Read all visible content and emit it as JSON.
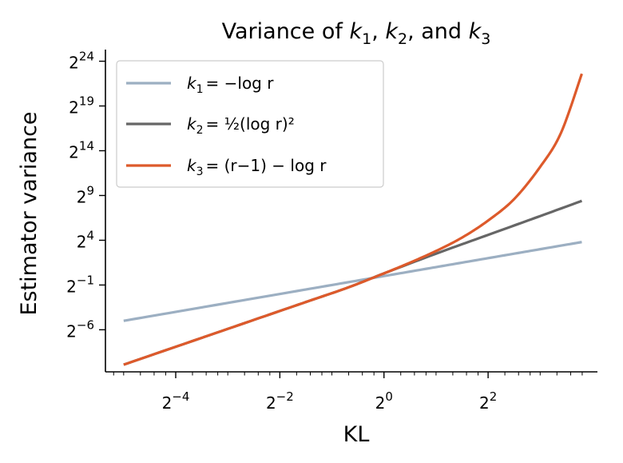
{
  "chart_data": {
    "type": "line",
    "title": "Variance of k1, k2, and k3",
    "xlabel": "KL",
    "ylabel": "Estimator variance",
    "xscale": "log2",
    "yscale": "log2",
    "xlim_log2": [
      -5.35,
      4.1
    ],
    "ylim_log2": [
      -10.7,
      25.3
    ],
    "x_ticks_log2": [
      -4,
      -2,
      0,
      2
    ],
    "x_tick_labels": [
      "2",
      "2",
      "2",
      "2"
    ],
    "x_tick_exponents": [
      "−4",
      "−2",
      "0",
      "2"
    ],
    "y_ticks_log2": [
      -6,
      -1,
      4,
      9,
      14,
      19,
      24
    ],
    "y_tick_labels": [
      "2",
      "2",
      "2",
      "2",
      "2",
      "2",
      "2"
    ],
    "y_tick_exponents": [
      "−6",
      "−1",
      "4",
      "9",
      "14",
      "19",
      "24"
    ],
    "legend_position": "top-left",
    "grid": false,
    "series": [
      {
        "name": "k1 = −log r",
        "color": "#9cafc2",
        "x_log2": [
          -5.0,
          -3.0,
          -1.0,
          0.0,
          1.0,
          2.0,
          3.0,
          3.8
        ],
        "y_log2": [
          -5.0,
          -3.0,
          -1.0,
          0.0,
          1.0,
          2.0,
          3.0,
          3.8
        ]
      },
      {
        "name": "k2 = ½(log r)²",
        "color": "#666666",
        "x_log2": [
          -5.0,
          -3.0,
          -1.5,
          -0.7,
          0.0,
          1.0,
          2.0,
          3.0,
          3.8
        ],
        "y_log2": [
          -9.9,
          -5.9,
          -2.9,
          -1.3,
          0.3,
          2.5,
          4.6,
          6.7,
          8.4
        ]
      },
      {
        "name": "k3 = (r−1) − log r",
        "color": "#dd5a2b",
        "x_log2": [
          -5.0,
          -3.0,
          -1.5,
          -0.7,
          0.0,
          0.5,
          1.0,
          1.5,
          2.0,
          2.5,
          3.0,
          3.4,
          3.8
        ],
        "y_log2": [
          -9.9,
          -5.9,
          -2.9,
          -1.3,
          0.3,
          1.5,
          2.8,
          4.3,
          6.2,
          8.6,
          12.2,
          16.0,
          22.6
        ]
      }
    ],
    "legend": [
      {
        "name": "k1",
        "lhs_sub": "1",
        "rhs": "= −log r"
      },
      {
        "name": "k2",
        "lhs_sub": "2",
        "rhs": "= ½(log r)²"
      },
      {
        "name": "k3",
        "lhs_sub": "3",
        "rhs": "= (r−1) − log r"
      }
    ]
  }
}
